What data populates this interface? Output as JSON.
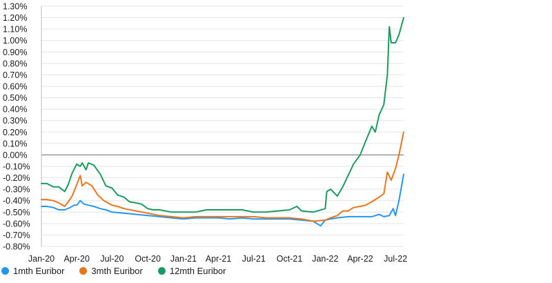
{
  "chart_data": {
    "type": "line",
    "title": "",
    "xlabel": "",
    "ylabel": "",
    "ylim": [
      -0.8,
      1.3
    ],
    "y_ticks": [
      1.3,
      1.2,
      1.1,
      1.0,
      0.9,
      0.8,
      0.7,
      0.6,
      0.5,
      0.4,
      0.3,
      0.2,
      0.1,
      0.0,
      -0.1,
      -0.2,
      -0.3,
      -0.4,
      -0.5,
      -0.6,
      -0.7,
      -0.8
    ],
    "y_tick_labels": [
      "1.30%",
      "1.20%",
      "1.10%",
      "1.00%",
      "0.90%",
      "0.80%",
      "0.70%",
      "0.60%",
      "0.50%",
      "0.40%",
      "0.30%",
      "0.20%",
      "0.10%",
      "0.00%",
      "-0.10%",
      "-0.20%",
      "-0.30%",
      "-0.40%",
      "-0.50%",
      "-0.60%",
      "-0.70%",
      "-0.80%"
    ],
    "x_tick_labels": [
      "Jan-20",
      "Apr-20",
      "Jul-20",
      "Oct-20",
      "Jan-21",
      "Apr-21",
      "Jul-21",
      "Oct-21",
      "Jan-22",
      "Apr-22",
      "Jul-22"
    ],
    "x_range": [
      "2020-01-01",
      "2022-07-22"
    ],
    "grid": "horizontal",
    "zero_line": true,
    "legend_position": "bottom-left",
    "series": [
      {
        "name": "1mth Euribor",
        "color": "#2196f3",
        "points": [
          [
            "2020-01-01",
            -0.45
          ],
          [
            "2020-01-15",
            -0.45
          ],
          [
            "2020-02-01",
            -0.46
          ],
          [
            "2020-02-15",
            -0.48
          ],
          [
            "2020-03-01",
            -0.48
          ],
          [
            "2020-03-15",
            -0.46
          ],
          [
            "2020-03-25",
            -0.44
          ],
          [
            "2020-04-01",
            -0.44
          ],
          [
            "2020-04-10",
            -0.4
          ],
          [
            "2020-04-20",
            -0.43
          ],
          [
            "2020-05-01",
            -0.44
          ],
          [
            "2020-05-15",
            -0.45
          ],
          [
            "2020-06-01",
            -0.47
          ],
          [
            "2020-06-15",
            -0.48
          ],
          [
            "2020-07-01",
            -0.5
          ],
          [
            "2020-08-01",
            -0.51
          ],
          [
            "2020-09-01",
            -0.52
          ],
          [
            "2020-10-01",
            -0.53
          ],
          [
            "2020-11-01",
            -0.54
          ],
          [
            "2020-12-01",
            -0.55
          ],
          [
            "2021-01-01",
            -0.56
          ],
          [
            "2021-02-01",
            -0.55
          ],
          [
            "2021-03-01",
            -0.55
          ],
          [
            "2021-04-01",
            -0.55
          ],
          [
            "2021-05-01",
            -0.56
          ],
          [
            "2021-06-01",
            -0.55
          ],
          [
            "2021-07-01",
            -0.56
          ],
          [
            "2021-08-01",
            -0.56
          ],
          [
            "2021-09-01",
            -0.56
          ],
          [
            "2021-10-01",
            -0.56
          ],
          [
            "2021-11-01",
            -0.57
          ],
          [
            "2021-12-01",
            -0.58
          ],
          [
            "2021-12-20",
            -0.62
          ],
          [
            "2022-01-01",
            -0.57
          ],
          [
            "2022-01-15",
            -0.56
          ],
          [
            "2022-02-01",
            -0.55
          ],
          [
            "2022-03-01",
            -0.54
          ],
          [
            "2022-04-01",
            -0.54
          ],
          [
            "2022-05-01",
            -0.54
          ],
          [
            "2022-05-20",
            -0.52
          ],
          [
            "2022-06-01",
            -0.54
          ],
          [
            "2022-06-15",
            -0.53
          ],
          [
            "2022-06-25",
            -0.47
          ],
          [
            "2022-07-01",
            -0.53
          ],
          [
            "2022-07-10",
            -0.4
          ],
          [
            "2022-07-22",
            -0.17
          ]
        ]
      },
      {
        "name": "3mth Euribor",
        "color": "#e8761c",
        "points": [
          [
            "2020-01-01",
            -0.39
          ],
          [
            "2020-01-15",
            -0.39
          ],
          [
            "2020-02-01",
            -0.4
          ],
          [
            "2020-02-15",
            -0.42
          ],
          [
            "2020-03-01",
            -0.45
          ],
          [
            "2020-03-10",
            -0.41
          ],
          [
            "2020-03-20",
            -0.36
          ],
          [
            "2020-04-01",
            -0.26
          ],
          [
            "2020-04-10",
            -0.18
          ],
          [
            "2020-04-15",
            -0.27
          ],
          [
            "2020-04-25",
            -0.24
          ],
          [
            "2020-05-10",
            -0.27
          ],
          [
            "2020-05-25",
            -0.35
          ],
          [
            "2020-06-10",
            -0.4
          ],
          [
            "2020-07-01",
            -0.44
          ],
          [
            "2020-07-15",
            -0.45
          ],
          [
            "2020-08-01",
            -0.47
          ],
          [
            "2020-09-01",
            -0.49
          ],
          [
            "2020-10-01",
            -0.51
          ],
          [
            "2020-11-01",
            -0.53
          ],
          [
            "2020-12-01",
            -0.54
          ],
          [
            "2021-01-01",
            -0.55
          ],
          [
            "2021-02-01",
            -0.54
          ],
          [
            "2021-03-01",
            -0.54
          ],
          [
            "2021-04-01",
            -0.54
          ],
          [
            "2021-05-01",
            -0.54
          ],
          [
            "2021-06-01",
            -0.54
          ],
          [
            "2021-07-01",
            -0.54
          ],
          [
            "2021-08-01",
            -0.55
          ],
          [
            "2021-09-01",
            -0.55
          ],
          [
            "2021-10-01",
            -0.55
          ],
          [
            "2021-11-01",
            -0.56
          ],
          [
            "2021-12-01",
            -0.58
          ],
          [
            "2022-01-01",
            -0.57
          ],
          [
            "2022-01-15",
            -0.55
          ],
          [
            "2022-02-01",
            -0.53
          ],
          [
            "2022-02-15",
            -0.49
          ],
          [
            "2022-03-01",
            -0.49
          ],
          [
            "2022-03-15",
            -0.46
          ],
          [
            "2022-04-01",
            -0.45
          ],
          [
            "2022-04-15",
            -0.44
          ],
          [
            "2022-05-01",
            -0.41
          ],
          [
            "2022-05-15",
            -0.38
          ],
          [
            "2022-06-01",
            -0.34
          ],
          [
            "2022-06-10",
            -0.15
          ],
          [
            "2022-06-20",
            -0.22
          ],
          [
            "2022-07-01",
            -0.12
          ],
          [
            "2022-07-10",
            0.0
          ],
          [
            "2022-07-22",
            0.2
          ]
        ]
      },
      {
        "name": "12mth Euribor",
        "color": "#1a9a5f",
        "points": [
          [
            "2020-01-01",
            -0.25
          ],
          [
            "2020-01-15",
            -0.25
          ],
          [
            "2020-02-01",
            -0.28
          ],
          [
            "2020-02-15",
            -0.28
          ],
          [
            "2020-03-01",
            -0.32
          ],
          [
            "2020-03-10",
            -0.26
          ],
          [
            "2020-03-20",
            -0.16
          ],
          [
            "2020-04-01",
            -0.08
          ],
          [
            "2020-04-10",
            -0.1
          ],
          [
            "2020-04-15",
            -0.07
          ],
          [
            "2020-04-25",
            -0.13
          ],
          [
            "2020-05-01",
            -0.07
          ],
          [
            "2020-05-15",
            -0.09
          ],
          [
            "2020-06-01",
            -0.17
          ],
          [
            "2020-06-15",
            -0.27
          ],
          [
            "2020-07-01",
            -0.29
          ],
          [
            "2020-07-15",
            -0.35
          ],
          [
            "2020-08-01",
            -0.37
          ],
          [
            "2020-08-15",
            -0.41
          ],
          [
            "2020-09-01",
            -0.42
          ],
          [
            "2020-09-15",
            -0.43
          ],
          [
            "2020-10-01",
            -0.47
          ],
          [
            "2020-10-15",
            -0.48
          ],
          [
            "2020-11-01",
            -0.48
          ],
          [
            "2020-12-01",
            -0.5
          ],
          [
            "2021-01-01",
            -0.5
          ],
          [
            "2021-02-01",
            -0.5
          ],
          [
            "2021-03-01",
            -0.48
          ],
          [
            "2021-04-01",
            -0.48
          ],
          [
            "2021-05-01",
            -0.48
          ],
          [
            "2021-06-01",
            -0.48
          ],
          [
            "2021-07-01",
            -0.5
          ],
          [
            "2021-08-01",
            -0.5
          ],
          [
            "2021-09-01",
            -0.49
          ],
          [
            "2021-10-01",
            -0.48
          ],
          [
            "2021-10-20",
            -0.45
          ],
          [
            "2021-11-01",
            -0.49
          ],
          [
            "2021-12-01",
            -0.5
          ],
          [
            "2022-01-01",
            -0.47
          ],
          [
            "2022-01-05",
            -0.32
          ],
          [
            "2022-01-15",
            -0.3
          ],
          [
            "2022-02-01",
            -0.36
          ],
          [
            "2022-02-15",
            -0.28
          ],
          [
            "2022-03-01",
            -0.18
          ],
          [
            "2022-03-15",
            -0.08
          ],
          [
            "2022-04-01",
            0.0
          ],
          [
            "2022-04-15",
            0.12
          ],
          [
            "2022-05-01",
            0.25
          ],
          [
            "2022-05-10",
            0.2
          ],
          [
            "2022-05-20",
            0.35
          ],
          [
            "2022-06-01",
            0.44
          ],
          [
            "2022-06-10",
            0.7
          ],
          [
            "2022-06-15",
            1.12
          ],
          [
            "2022-06-20",
            0.98
          ],
          [
            "2022-07-01",
            0.98
          ],
          [
            "2022-07-10",
            1.05
          ],
          [
            "2022-07-22",
            1.2
          ]
        ]
      }
    ]
  }
}
